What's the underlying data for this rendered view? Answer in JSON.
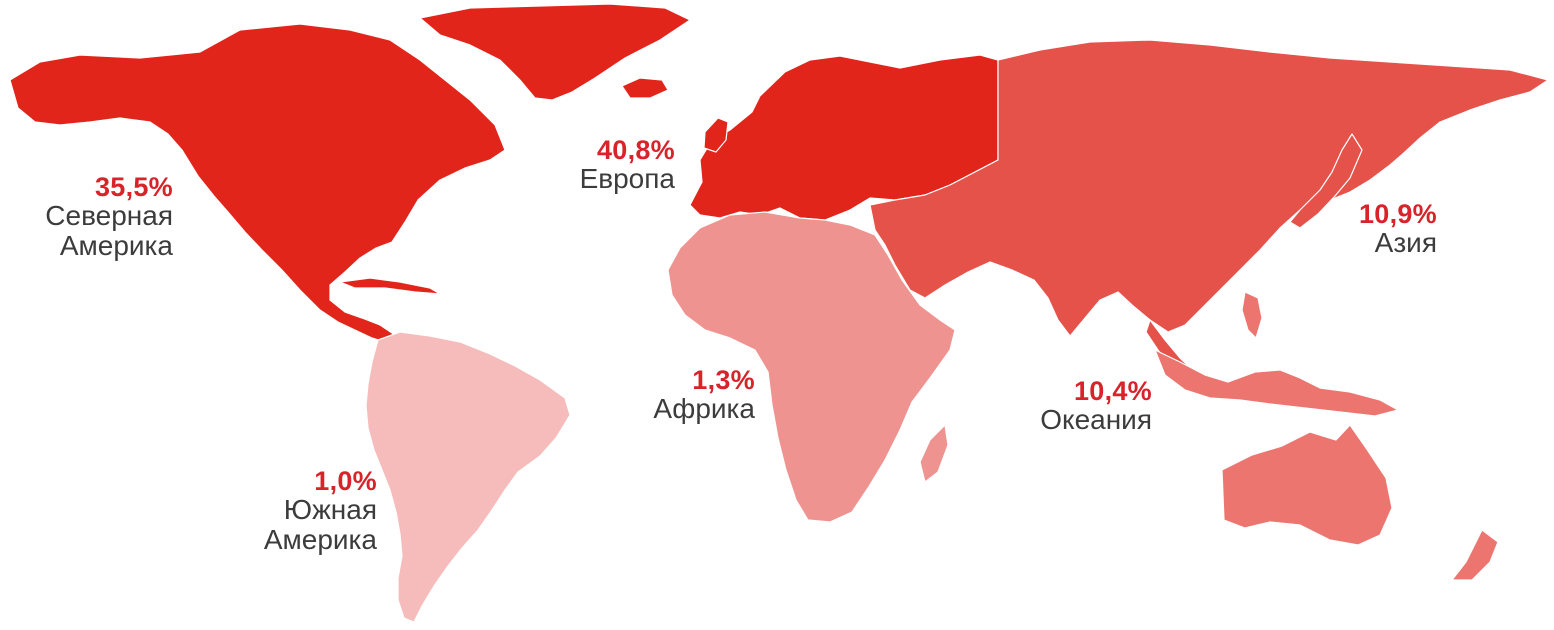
{
  "colors": {
    "percent_text": "#d8232a",
    "north_america": "#e1251b",
    "europe": "#e1251b",
    "asia": "#e5524a",
    "oceania": "#ec7570",
    "africa": "#ee9390",
    "south_america": "#f5bcbb"
  },
  "regions": [
    {
      "key": "north_america",
      "percent": "35,5%",
      "name": "Северная\nАмерика",
      "value": 35.5
    },
    {
      "key": "europe",
      "percent": "40,8%",
      "name": "Европа",
      "value": 40.8
    },
    {
      "key": "asia",
      "percent": "10,9%",
      "name": "Азия",
      "value": 10.9
    },
    {
      "key": "africa",
      "percent": "1,3%",
      "name": "Африка",
      "value": 1.3
    },
    {
      "key": "oceania",
      "percent": "10,4%",
      "name": "Океания",
      "value": 10.4
    },
    {
      "key": "south_america",
      "percent": "1,0%",
      "name": "Южная\nАмерика",
      "value": 1.0
    }
  ]
}
